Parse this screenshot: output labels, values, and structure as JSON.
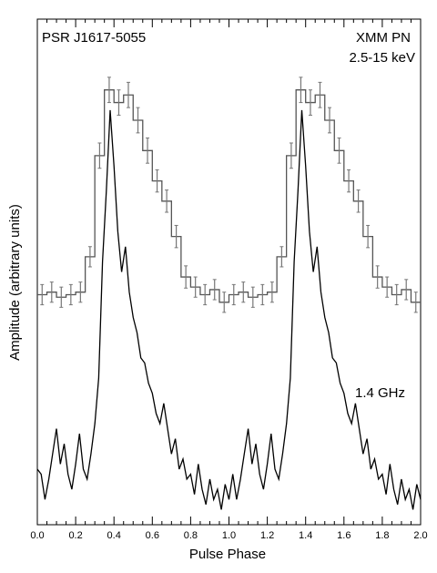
{
  "chart_data": {
    "type": "line",
    "title": "",
    "annotations": {
      "source": "PSR J1617-5055",
      "instrument": "XMM PN",
      "energy_band": "2.5-15 keV",
      "radio_band": "1.4 GHz"
    },
    "xlabel": "Pulse Phase",
    "ylabel": "Amplitude (arbitrary units)",
    "xlim": [
      0.0,
      2.0
    ],
    "ylim": [
      0,
      1
    ],
    "xticks": [
      "0.0",
      "0.2",
      "0.4",
      "0.6",
      "0.8",
      "1.0",
      "1.2",
      "1.4",
      "1.6",
      "1.8",
      "2.0"
    ],
    "grid": false,
    "series": [
      {
        "name": "XMM PN 2.5-15 keV",
        "style": "histogram",
        "bin_width": 0.05,
        "x": [
          0.0,
          0.05,
          0.1,
          0.15,
          0.2,
          0.25,
          0.3,
          0.35,
          0.4,
          0.45,
          0.5,
          0.55,
          0.6,
          0.65,
          0.7,
          0.75,
          0.8,
          0.85,
          0.9,
          0.95
        ],
        "values": [
          0.455,
          0.46,
          0.45,
          0.455,
          0.46,
          0.53,
          0.73,
          0.86,
          0.835,
          0.85,
          0.8,
          0.74,
          0.68,
          0.64,
          0.57,
          0.49,
          0.47,
          0.455,
          0.465,
          0.44
        ],
        "errors": [
          0.02,
          0.02,
          0.02,
          0.02,
          0.02,
          0.02,
          0.025,
          0.025,
          0.025,
          0.025,
          0.025,
          0.025,
          0.022,
          0.022,
          0.022,
          0.022,
          0.02,
          0.02,
          0.02,
          0.02
        ],
        "color": "#000000"
      },
      {
        "name": "1.4 GHz",
        "style": "line",
        "x": [
          0.0,
          0.02,
          0.04,
          0.06,
          0.08,
          0.1,
          0.12,
          0.14,
          0.16,
          0.18,
          0.2,
          0.22,
          0.24,
          0.26,
          0.28,
          0.3,
          0.32,
          0.34,
          0.36,
          0.38,
          0.4,
          0.42,
          0.44,
          0.46,
          0.48,
          0.5,
          0.52,
          0.54,
          0.56,
          0.58,
          0.6,
          0.62,
          0.64,
          0.66,
          0.68,
          0.7,
          0.72,
          0.74,
          0.76,
          0.78,
          0.8,
          0.82,
          0.84,
          0.86,
          0.88,
          0.9,
          0.92,
          0.94,
          0.96,
          0.98,
          1.0
        ],
        "values": [
          0.11,
          0.1,
          0.05,
          0.09,
          0.14,
          0.19,
          0.12,
          0.16,
          0.1,
          0.07,
          0.12,
          0.18,
          0.11,
          0.09,
          0.14,
          0.2,
          0.29,
          0.52,
          0.66,
          0.82,
          0.71,
          0.58,
          0.5,
          0.55,
          0.46,
          0.41,
          0.38,
          0.33,
          0.32,
          0.28,
          0.26,
          0.22,
          0.2,
          0.24,
          0.19,
          0.14,
          0.17,
          0.11,
          0.13,
          0.09,
          0.1,
          0.06,
          0.12,
          0.07,
          0.04,
          0.09,
          0.05,
          0.07,
          0.03,
          0.08,
          0.05
        ],
        "color": "#000000"
      }
    ]
  }
}
